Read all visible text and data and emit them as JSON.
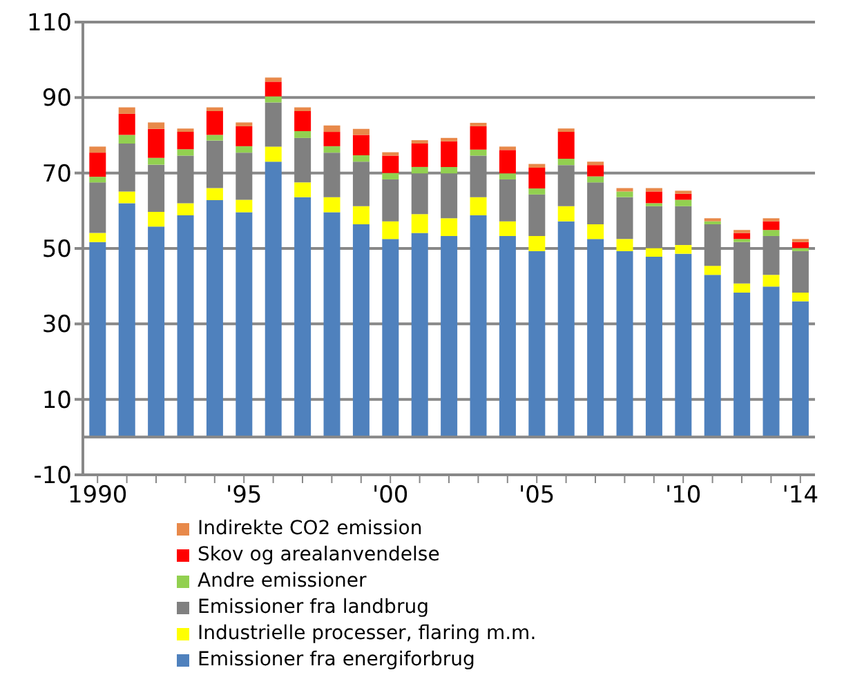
{
  "chart_data": {
    "type": "bar",
    "stacked": true,
    "categories": [
      "1990",
      null,
      null,
      null,
      null,
      "'95",
      null,
      null,
      null,
      null,
      "'00",
      null,
      null,
      null,
      null,
      "'05",
      null,
      null,
      null,
      null,
      "'10",
      null,
      null,
      null,
      "'14"
    ],
    "series": [
      {
        "name": "Emissioner fra energiforbrug",
        "color": "#4f81bd",
        "values": [
          51.7,
          62,
          55.8,
          58.8,
          62.8,
          59.6,
          73,
          63.6,
          59.6,
          56.4,
          52.5,
          54.1,
          53.3,
          58.8,
          53.3,
          49.3,
          57.2,
          52.5,
          49.3,
          47.8,
          48.6,
          43,
          38.3,
          39.9,
          36
        ]
      },
      {
        "name": "Industrielle processer, flaring m.m.",
        "color": "#ffff00",
        "values": [
          2.4,
          3.1,
          3.9,
          3.2,
          3.2,
          3.3,
          4,
          3.9,
          4,
          4.8,
          4.7,
          5,
          4.7,
          4.8,
          3.9,
          4,
          4,
          3.9,
          3.2,
          2.3,
          2.3,
          2.4,
          2.4,
          3.1,
          2.3
        ]
      },
      {
        "name": "Emissioner fra landbrug",
        "color": "#808080",
        "values": [
          13.4,
          12.7,
          12.5,
          12.6,
          12.6,
          12.5,
          11.7,
          11.8,
          11.8,
          11.8,
          11.1,
          10.8,
          11.9,
          11,
          11.1,
          11,
          10.9,
          11.1,
          11.1,
          11.1,
          10.3,
          11,
          11,
          10.3,
          11
        ]
      },
      {
        "name": "Andre emissioner",
        "color": "#92d050",
        "values": [
          1.5,
          2.3,
          1.8,
          1.7,
          1.5,
          1.7,
          1.6,
          1.8,
          1.7,
          1.7,
          1.7,
          1.7,
          1.7,
          1.6,
          1.6,
          1.6,
          1.7,
          1.6,
          1.5,
          0.8,
          1.7,
          0.8,
          0.8,
          1.6,
          0.8
        ]
      },
      {
        "name": "Skov og arealanvendelse",
        "color": "#ff0000",
        "values": [
          6.4,
          5.6,
          7.7,
          4.6,
          6.3,
          5.3,
          3.9,
          5.3,
          3.8,
          5.4,
          4.6,
          6.2,
          6.8,
          6.2,
          6.2,
          5.5,
          7.1,
          3,
          null,
          3.1,
          1.6,
          null,
          1.6,
          2.3,
          1.6
        ]
      },
      {
        "name": "Indirekte CO2 emission",
        "color": "#e8894a",
        "values": [
          1.6,
          1.7,
          1.7,
          0.9,
          1.0,
          1.0,
          1.1,
          1.0,
          1.7,
          1.6,
          0.9,
          0.9,
          0.9,
          0.9,
          0.9,
          1.0,
          0.9,
          0.9,
          0.9,
          0.9,
          0.8,
          0.8,
          0.8,
          0.8,
          0.8
        ]
      }
    ],
    "ylim": [
      -10,
      110
    ],
    "yticks": [
      -10,
      10,
      30,
      50,
      70,
      90,
      110
    ],
    "grid": "y",
    "legend": "bottom"
  }
}
